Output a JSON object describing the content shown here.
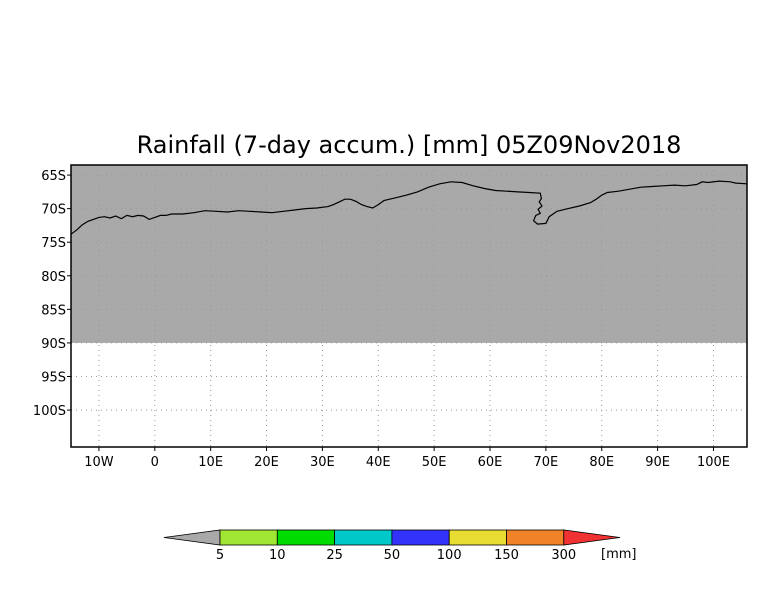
{
  "title": "Rainfall (7-day accum.) [mm] 05Z09Nov2018",
  "colors": {
    "land_mask": "#a9a9a9",
    "coastline": "#000000",
    "grid": "#9a9a9a",
    "background": "#ffffff"
  },
  "map": {
    "lon_range": [
      -15,
      106
    ],
    "lat_range": [
      -105.5,
      -63.5
    ],
    "masked_below_lat": -90,
    "lon_ticks": [
      {
        "value": -10,
        "label": "10W"
      },
      {
        "value": 0,
        "label": "0"
      },
      {
        "value": 10,
        "label": "10E"
      },
      {
        "value": 20,
        "label": "20E"
      },
      {
        "value": 30,
        "label": "30E"
      },
      {
        "value": 40,
        "label": "40E"
      },
      {
        "value": 50,
        "label": "50E"
      },
      {
        "value": 60,
        "label": "60E"
      },
      {
        "value": 70,
        "label": "70E"
      },
      {
        "value": 80,
        "label": "80E"
      },
      {
        "value": 90,
        "label": "90E"
      },
      {
        "value": 100,
        "label": "100E"
      }
    ],
    "lat_ticks": [
      {
        "value": -65,
        "label": "65S"
      },
      {
        "value": -70,
        "label": "70S"
      },
      {
        "value": -75,
        "label": "75S"
      },
      {
        "value": -80,
        "label": "80S"
      },
      {
        "value": -85,
        "label": "85S"
      },
      {
        "value": -90,
        "label": "90S"
      },
      {
        "value": -95,
        "label": "95S"
      },
      {
        "value": -100,
        "label": "100S"
      }
    ],
    "coastline": [
      [
        -15,
        -73.8
      ],
      [
        -14,
        -73.2
      ],
      [
        -13,
        -72.4
      ],
      [
        -12,
        -71.9
      ],
      [
        -11,
        -71.6
      ],
      [
        -10,
        -71.3
      ],
      [
        -9,
        -71.2
      ],
      [
        -8,
        -71.4
      ],
      [
        -7,
        -71.1
      ],
      [
        -6,
        -71.5
      ],
      [
        -5,
        -71.0
      ],
      [
        -4,
        -71.2
      ],
      [
        -3,
        -71.0
      ],
      [
        -2,
        -71.1
      ],
      [
        -1,
        -71.6
      ],
      [
        0,
        -71.3
      ],
      [
        1,
        -71.0
      ],
      [
        2,
        -71.0
      ],
      [
        3,
        -70.8
      ],
      [
        5,
        -70.8
      ],
      [
        7,
        -70.6
      ],
      [
        9,
        -70.3
      ],
      [
        11,
        -70.4
      ],
      [
        13,
        -70.5
      ],
      [
        15,
        -70.3
      ],
      [
        17,
        -70.4
      ],
      [
        19,
        -70.5
      ],
      [
        21,
        -70.6
      ],
      [
        23,
        -70.4
      ],
      [
        25,
        -70.2
      ],
      [
        27,
        -70.0
      ],
      [
        29,
        -69.9
      ],
      [
        31,
        -69.7
      ],
      [
        32,
        -69.4
      ],
      [
        33,
        -69.0
      ],
      [
        34,
        -68.6
      ],
      [
        35,
        -68.6
      ],
      [
        36,
        -68.9
      ],
      [
        37,
        -69.4
      ],
      [
        38,
        -69.7
      ],
      [
        39,
        -69.9
      ],
      [
        40,
        -69.4
      ],
      [
        41,
        -68.8
      ],
      [
        43,
        -68.4
      ],
      [
        45,
        -68.0
      ],
      [
        47,
        -67.5
      ],
      [
        49,
        -66.8
      ],
      [
        51,
        -66.3
      ],
      [
        53,
        -66.0
      ],
      [
        55,
        -66.1
      ],
      [
        57,
        -66.6
      ],
      [
        59,
        -67.0
      ],
      [
        61,
        -67.3
      ],
      [
        63,
        -67.4
      ],
      [
        65,
        -67.5
      ],
      [
        67,
        -67.6
      ],
      [
        69,
        -67.7
      ],
      [
        69.2,
        -68.5
      ],
      [
        68.8,
        -69.0
      ],
      [
        69.3,
        -69.6
      ],
      [
        68.6,
        -70.1
      ],
      [
        69.0,
        -70.7
      ],
      [
        68.2,
        -71.0
      ],
      [
        67.8,
        -71.8
      ],
      [
        68.5,
        -72.3
      ],
      [
        70.0,
        -72.2
      ],
      [
        70.6,
        -71.2
      ],
      [
        72,
        -70.4
      ],
      [
        74,
        -70.0
      ],
      [
        76,
        -69.6
      ],
      [
        78,
        -69.1
      ],
      [
        79,
        -68.6
      ],
      [
        80,
        -68.0
      ],
      [
        81,
        -67.6
      ],
      [
        83,
        -67.4
      ],
      [
        85,
        -67.1
      ],
      [
        87,
        -66.8
      ],
      [
        89,
        -66.7
      ],
      [
        91,
        -66.6
      ],
      [
        93,
        -66.5
      ],
      [
        95,
        -66.6
      ],
      [
        97,
        -66.4
      ],
      [
        98,
        -66.0
      ],
      [
        99,
        -66.1
      ],
      [
        101,
        -65.9
      ],
      [
        103,
        -66.0
      ],
      [
        104,
        -66.2
      ],
      [
        106,
        -66.3
      ]
    ]
  },
  "colorbar": {
    "unit_label": "[mm]",
    "segments": [
      {
        "color": "#a9a9a9"
      },
      {
        "color": "#a0e632"
      },
      {
        "color": "#00dc00"
      },
      {
        "color": "#00c8c8"
      },
      {
        "color": "#3232fa"
      },
      {
        "color": "#e6dc32"
      },
      {
        "color": "#f08228"
      },
      {
        "color": "#f03232"
      }
    ],
    "labels": [
      "5",
      "10",
      "25",
      "50",
      "100",
      "150",
      "300"
    ]
  }
}
